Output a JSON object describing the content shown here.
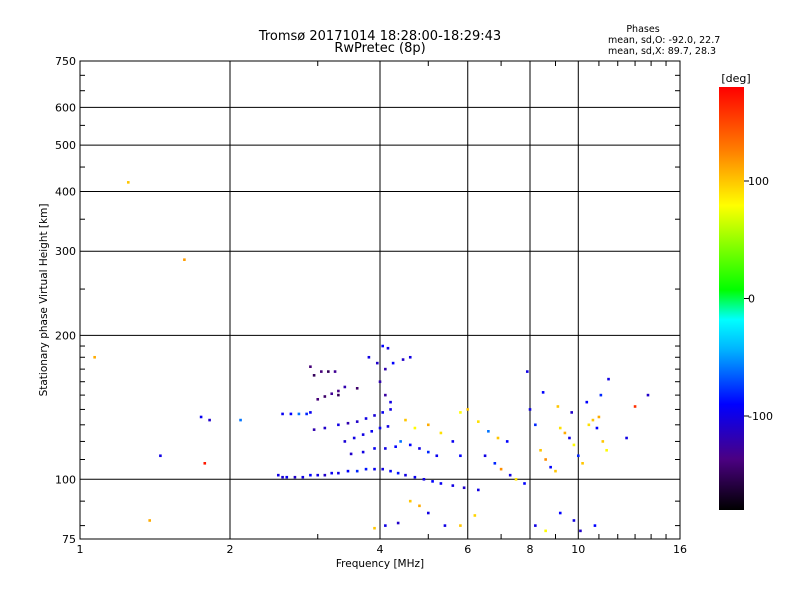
{
  "chart_data": {
    "type": "scatter",
    "title": "Tromsø 20171014 18:28:00-18:29:43",
    "subtitle": "RwPretec (8p)",
    "legend_title": "Phases",
    "legend_lines": [
      "mean, sd,O: -92.0, 22.7",
      "mean, sd,X:  89.7, 28.3"
    ],
    "xlabel": "Frequency [MHz]",
    "ylabel": "Stationary phase Virtual Height [km]",
    "x_scale": "log",
    "y_scale": "log",
    "xlim": [
      1,
      16
    ],
    "ylim": [
      75,
      750
    ],
    "x_ticks": [
      1,
      2,
      4,
      6,
      8,
      10,
      16
    ],
    "x_tick_labels": [
      "1",
      "2",
      "4",
      "6",
      "8",
      "10",
      "16"
    ],
    "y_ticks": [
      75,
      100,
      200,
      300,
      400,
      500,
      600,
      750
    ],
    "y_tick_labels": [
      "75",
      "100",
      "200",
      "300",
      "400",
      "500",
      "600",
      "750"
    ],
    "grid": true,
    "colorbar": {
      "label": "[deg]",
      "range": [
        -180,
        180
      ],
      "ticks": [
        100,
        0,
        -100
      ],
      "tick_labels": [
        "100",
        "0",
        "-100"
      ],
      "stops": [
        "#000000",
        "#4b0082",
        "#0000ff",
        "#00b4ff",
        "#00ffff",
        "#00ff00",
        "#ffff00",
        "#ff7f00",
        "#ff0000"
      ]
    },
    "series": [
      {
        "color_by": "phase_deg",
        "points": [
          [
            1.25,
            418,
            100
          ],
          [
            1.07,
            180,
            110
          ],
          [
            1.38,
            82,
            110
          ],
          [
            1.45,
            112,
            -100
          ],
          [
            1.62,
            288,
            115
          ],
          [
            1.75,
            135,
            -95
          ],
          [
            1.78,
            108,
            170
          ],
          [
            1.82,
            133,
            -110
          ],
          [
            2.1,
            133,
            -60
          ],
          [
            2.55,
            137,
            -95
          ],
          [
            2.65,
            137,
            -90
          ],
          [
            2.75,
            137,
            -60
          ],
          [
            2.85,
            137,
            -80
          ],
          [
            2.9,
            138,
            -95
          ],
          [
            2.5,
            102,
            -100
          ],
          [
            2.55,
            101,
            -105
          ],
          [
            2.6,
            101,
            -95
          ],
          [
            2.7,
            101,
            -110
          ],
          [
            2.8,
            101,
            -100
          ],
          [
            2.9,
            102,
            -90
          ],
          [
            3.0,
            102,
            -100
          ],
          [
            3.1,
            102,
            -110
          ],
          [
            3.2,
            103,
            -95
          ],
          [
            3.3,
            103,
            -100
          ],
          [
            3.45,
            104,
            -90
          ],
          [
            3.6,
            104,
            -80
          ],
          [
            3.75,
            105,
            -85
          ],
          [
            3.9,
            105,
            -95
          ],
          [
            4.05,
            105,
            -100
          ],
          [
            4.2,
            104,
            -90
          ],
          [
            4.35,
            103,
            -85
          ],
          [
            4.5,
            102,
            -100
          ],
          [
            4.7,
            101,
            -95
          ],
          [
            4.9,
            100,
            -100
          ],
          [
            5.1,
            99,
            -90
          ],
          [
            5.3,
            98,
            -95
          ],
          [
            5.6,
            97,
            -100
          ],
          [
            5.9,
            96,
            -110
          ],
          [
            6.3,
            95,
            -100
          ],
          [
            2.95,
            165,
            -150
          ],
          [
            3.05,
            168,
            -140
          ],
          [
            3.15,
            168,
            -150
          ],
          [
            3.25,
            168,
            -130
          ],
          [
            2.9,
            172,
            -140
          ],
          [
            3.0,
            147,
            -140
          ],
          [
            3.1,
            149,
            -145
          ],
          [
            3.2,
            151,
            -130
          ],
          [
            3.3,
            153,
            -135
          ],
          [
            3.4,
            156,
            -120
          ],
          [
            2.95,
            127,
            -120
          ],
          [
            3.1,
            128,
            -110
          ],
          [
            3.3,
            130,
            -100
          ],
          [
            3.45,
            131,
            -120
          ],
          [
            3.6,
            132,
            -110
          ],
          [
            3.75,
            134,
            -100
          ],
          [
            3.9,
            136,
            -105
          ],
          [
            4.05,
            138,
            -95
          ],
          [
            4.2,
            140,
            -100
          ],
          [
            3.4,
            120,
            -105
          ],
          [
            3.55,
            122,
            -100
          ],
          [
            3.7,
            124,
            -100
          ],
          [
            3.85,
            126,
            -95
          ],
          [
            4.0,
            128,
            -95
          ],
          [
            4.15,
            129,
            -100
          ],
          [
            3.5,
            113,
            -110
          ],
          [
            3.7,
            114,
            -100
          ],
          [
            3.9,
            116,
            -95
          ],
          [
            4.1,
            116,
            -100
          ],
          [
            4.3,
            117,
            -90
          ],
          [
            4.05,
            190,
            -90
          ],
          [
            4.15,
            188,
            -100
          ],
          [
            4.1,
            170,
            -120
          ],
          [
            4.25,
            175,
            -90
          ],
          [
            4.45,
            178,
            -110
          ],
          [
            4.6,
            180,
            -100
          ],
          [
            3.8,
            180,
            -100
          ],
          [
            3.95,
            175,
            -110
          ],
          [
            4.0,
            160,
            -120
          ],
          [
            4.1,
            150,
            -125
          ],
          [
            4.2,
            145,
            -100
          ],
          [
            4.4,
            120,
            -60
          ],
          [
            4.6,
            118,
            -90
          ],
          [
            4.8,
            116,
            -100
          ],
          [
            5.0,
            114,
            -80
          ],
          [
            5.2,
            112,
            -95
          ],
          [
            4.5,
            133,
            100
          ],
          [
            4.7,
            128,
            80
          ],
          [
            5.0,
            130,
            110
          ],
          [
            5.3,
            125,
            90
          ],
          [
            5.6,
            120,
            -95
          ],
          [
            5.8,
            112,
            -90
          ],
          [
            4.6,
            90,
            100
          ],
          [
            4.8,
            88,
            110
          ],
          [
            5.0,
            85,
            -100
          ],
          [
            5.4,
            80,
            -100
          ],
          [
            5.8,
            80,
            100
          ],
          [
            6.2,
            84,
            95
          ],
          [
            5.8,
            138,
            80
          ],
          [
            6.0,
            140,
            100
          ],
          [
            6.3,
            132,
            90
          ],
          [
            6.6,
            126,
            -60
          ],
          [
            6.9,
            122,
            100
          ],
          [
            7.2,
            120,
            -90
          ],
          [
            6.5,
            112,
            -100
          ],
          [
            6.8,
            108,
            -80
          ],
          [
            7.0,
            105,
            120
          ],
          [
            7.3,
            102,
            -100
          ],
          [
            7.5,
            100,
            90
          ],
          [
            7.8,
            98,
            -90
          ],
          [
            8.0,
            140,
            -100
          ],
          [
            8.2,
            130,
            -80
          ],
          [
            8.4,
            115,
            100
          ],
          [
            8.6,
            110,
            120
          ],
          [
            8.8,
            106,
            -90
          ],
          [
            9.0,
            104,
            100
          ],
          [
            9.2,
            128,
            90
          ],
          [
            9.4,
            125,
            110
          ],
          [
            9.6,
            122,
            -100
          ],
          [
            9.8,
            118,
            80
          ],
          [
            10.0,
            112,
            -80
          ],
          [
            10.2,
            108,
            100
          ],
          [
            10.5,
            130,
            90
          ],
          [
            10.7,
            133,
            100
          ],
          [
            10.9,
            128,
            -90
          ],
          [
            11.0,
            135,
            110
          ],
          [
            11.2,
            120,
            100
          ],
          [
            11.4,
            115,
            80
          ],
          [
            7.9,
            168,
            -100
          ],
          [
            8.5,
            152,
            -90
          ],
          [
            9.1,
            142,
            100
          ],
          [
            9.7,
            138,
            -110
          ],
          [
            10.4,
            145,
            -90
          ],
          [
            11.1,
            150,
            -80
          ],
          [
            12.5,
            122,
            -100
          ],
          [
            13.0,
            142,
            160
          ],
          [
            13.8,
            150,
            -110
          ],
          [
            11.5,
            162,
            -100
          ],
          [
            8.2,
            80,
            -100
          ],
          [
            8.6,
            78,
            80
          ],
          [
            9.2,
            85,
            -90
          ],
          [
            9.8,
            82,
            -100
          ],
          [
            10.1,
            78,
            -110
          ],
          [
            10.8,
            80,
            -90
          ],
          [
            3.3,
            150,
            -150
          ],
          [
            3.6,
            155,
            -145
          ],
          [
            4.1,
            80,
            -100
          ],
          [
            4.35,
            81,
            -110
          ],
          [
            3.9,
            79,
            100
          ]
        ]
      }
    ]
  }
}
